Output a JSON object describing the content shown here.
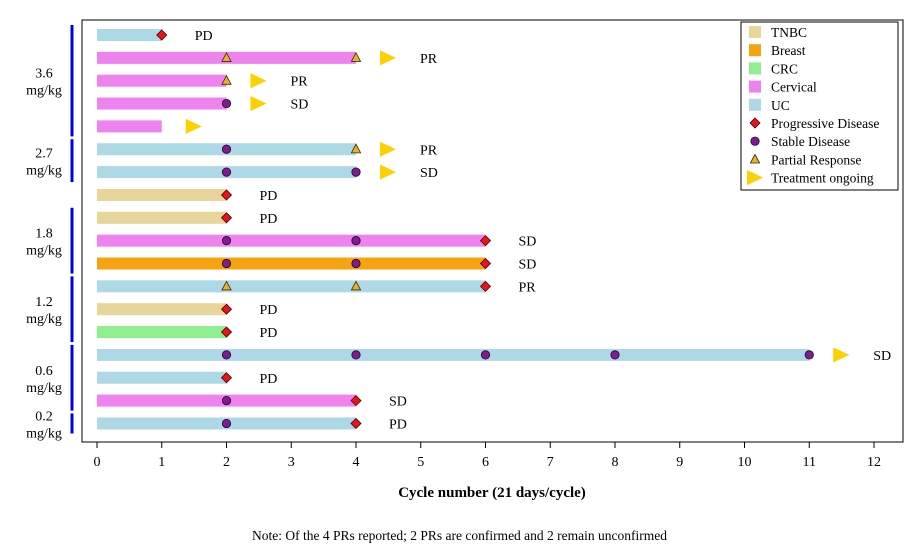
{
  "chart_data": {
    "type": "swimmer",
    "title": "",
    "xlabel": "Cycle number (21 days/cycle)",
    "ylabel": "",
    "xlim": [
      -0.2,
      12.4
    ],
    "xticks": [
      0,
      1,
      2,
      3,
      4,
      5,
      6,
      7,
      8,
      9,
      10,
      11,
      12
    ],
    "colors": {
      "TNBC": "#e8d59a",
      "Breast": "#f5a30e",
      "CRC": "#90ee90",
      "Cervical": "#ee82ee",
      "UC": "#add8e6",
      "pd": "#e8141c",
      "sd": "#7a1f8c",
      "pr": "#e8b030",
      "ongoing": "#ffd000",
      "dose_line": "#0000dd"
    },
    "dose_groups": [
      {
        "line1": "3.6",
        "line2": "mg/kg",
        "first_row": 0,
        "last_row": 4
      },
      {
        "line1": "2.7",
        "line2": "mg/kg",
        "first_row": 5,
        "last_row": 6
      },
      {
        "line1": "1.8",
        "line2": "mg/kg",
        "first_row": 8,
        "last_row": 10
      },
      {
        "line1": "1.2",
        "line2": "mg/kg",
        "first_row": 11,
        "last_row": 13
      },
      {
        "line1": "0.6",
        "line2": "mg/kg",
        "first_row": 14,
        "last_row": 16
      },
      {
        "line1": "0.2",
        "line2": "mg/kg",
        "first_row": 17,
        "last_row": 17
      }
    ],
    "patients": [
      {
        "tumor": "UC",
        "end": 1,
        "markers": [
          {
            "x": 1,
            "type": "PD"
          }
        ],
        "ongoing": false,
        "label": "PD"
      },
      {
        "tumor": "Cervical",
        "end": 4,
        "markers": [
          {
            "x": 2,
            "type": "PR"
          },
          {
            "x": 4,
            "type": "PR"
          }
        ],
        "ongoing": true,
        "label": "PR"
      },
      {
        "tumor": "Cervical",
        "end": 2,
        "markers": [
          {
            "x": 2,
            "type": "PR"
          }
        ],
        "ongoing": true,
        "label": "PR"
      },
      {
        "tumor": "Cervical",
        "end": 2,
        "markers": [
          {
            "x": 2,
            "type": "SD"
          }
        ],
        "ongoing": true,
        "label": "SD"
      },
      {
        "tumor": "Cervical",
        "end": 1,
        "markers": [],
        "ongoing": true,
        "label": ""
      },
      {
        "tumor": "UC",
        "end": 4,
        "markers": [
          {
            "x": 2,
            "type": "SD"
          },
          {
            "x": 4,
            "type": "PR"
          }
        ],
        "ongoing": true,
        "label": "PR"
      },
      {
        "tumor": "UC",
        "end": 4,
        "markers": [
          {
            "x": 2,
            "type": "SD"
          },
          {
            "x": 4,
            "type": "SD"
          }
        ],
        "ongoing": true,
        "label": "SD"
      },
      {
        "tumor": "TNBC",
        "end": 2,
        "markers": [
          {
            "x": 2,
            "type": "PD"
          }
        ],
        "ongoing": false,
        "label": "PD"
      },
      {
        "tumor": "TNBC",
        "end": 2,
        "markers": [
          {
            "x": 2,
            "type": "PD"
          }
        ],
        "ongoing": false,
        "label": "PD"
      },
      {
        "tumor": "Cervical",
        "end": 6,
        "markers": [
          {
            "x": 2,
            "type": "SD"
          },
          {
            "x": 4,
            "type": "SD"
          },
          {
            "x": 6,
            "type": "PD"
          }
        ],
        "ongoing": false,
        "label": "SD"
      },
      {
        "tumor": "Breast",
        "end": 6,
        "markers": [
          {
            "x": 2,
            "type": "SD"
          },
          {
            "x": 4,
            "type": "SD"
          },
          {
            "x": 6,
            "type": "PD"
          }
        ],
        "ongoing": false,
        "label": "SD"
      },
      {
        "tumor": "UC",
        "end": 6,
        "markers": [
          {
            "x": 2,
            "type": "PR"
          },
          {
            "x": 4,
            "type": "PR"
          },
          {
            "x": 6,
            "type": "PD"
          }
        ],
        "ongoing": false,
        "label": "PR"
      },
      {
        "tumor": "TNBC",
        "end": 2,
        "markers": [
          {
            "x": 2,
            "type": "PD"
          }
        ],
        "ongoing": false,
        "label": "PD"
      },
      {
        "tumor": "CRC",
        "end": 2,
        "markers": [
          {
            "x": 2,
            "type": "PD"
          }
        ],
        "ongoing": false,
        "label": "PD"
      },
      {
        "tumor": "UC",
        "end": 11,
        "markers": [
          {
            "x": 2,
            "type": "SD"
          },
          {
            "x": 4,
            "type": "SD"
          },
          {
            "x": 6,
            "type": "SD"
          },
          {
            "x": 8,
            "type": "SD"
          },
          {
            "x": 11,
            "type": "SD"
          }
        ],
        "ongoing": true,
        "label": "SD"
      },
      {
        "tumor": "UC",
        "end": 2,
        "markers": [
          {
            "x": 2,
            "type": "PD"
          }
        ],
        "ongoing": false,
        "label": "PD"
      },
      {
        "tumor": "Cervical",
        "end": 4,
        "markers": [
          {
            "x": 2,
            "type": "SD"
          },
          {
            "x": 4,
            "type": "PD"
          }
        ],
        "ongoing": false,
        "label": "SD"
      },
      {
        "tumor": "UC",
        "end": 4,
        "markers": [
          {
            "x": 2,
            "type": "SD"
          },
          {
            "x": 4,
            "type": "PD"
          }
        ],
        "ongoing": false,
        "label": "PD"
      }
    ],
    "legend": {
      "position": "top-right",
      "entries": [
        {
          "kind": "bar",
          "key": "TNBC",
          "label": "TNBC"
        },
        {
          "kind": "bar",
          "key": "Breast",
          "label": "Breast"
        },
        {
          "kind": "bar",
          "key": "CRC",
          "label": "CRC"
        },
        {
          "kind": "bar",
          "key": "Cervical",
          "label": "Cervical"
        },
        {
          "kind": "bar",
          "key": "UC",
          "label": "UC"
        },
        {
          "kind": "PD",
          "label": "Progressive Disease"
        },
        {
          "kind": "SD",
          "label": "Stable Disease"
        },
        {
          "kind": "PR",
          "label": "Partial Response"
        },
        {
          "kind": "ongoing",
          "label": "Treatment ongoing"
        }
      ]
    }
  },
  "note": "Note: Of the 4 PRs reported; 2 PRs are confirmed and 2 remain unconfirmed"
}
